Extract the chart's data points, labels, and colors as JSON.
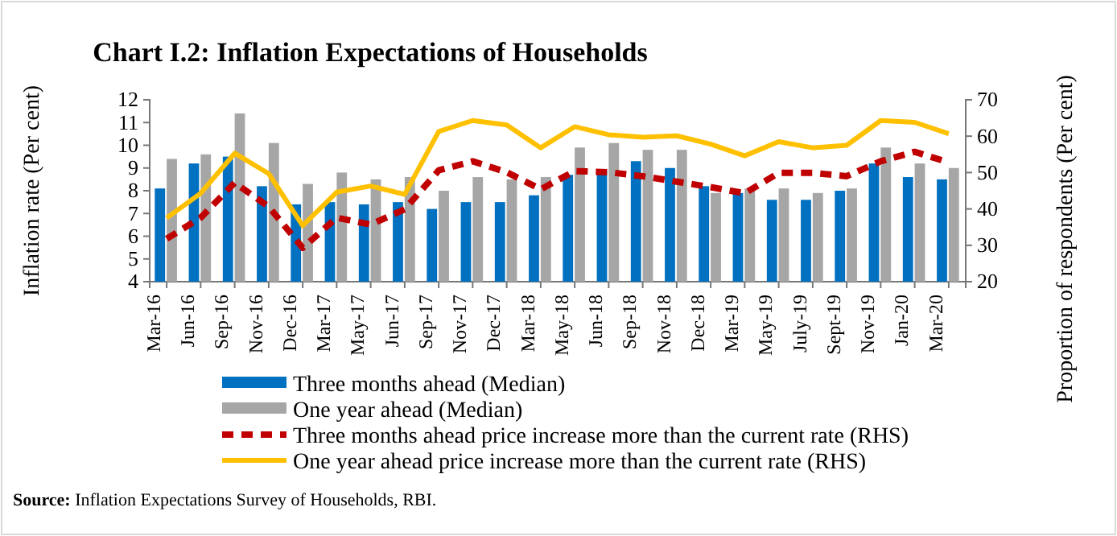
{
  "chart_data": {
    "type": "bar",
    "title": "Chart I.2: Inflation Expectations of Households",
    "ylabel": "Inflation rate (Per cent)",
    "y2label": "Proportion of respondents (Per cent)",
    "categories": [
      "Mar-16",
      "Jun-16",
      "Sep-16",
      "Nov-16",
      "Dec-16",
      "Mar-17",
      "May-17",
      "Jun-17",
      "Sep-17",
      "Nov-17",
      "Dec-17",
      "Mar-18",
      "May-18",
      "Jun-18",
      "Sep-18",
      "Nov-18",
      "Dec-18",
      "Mar-19",
      "May-19",
      "July-19",
      "Sept-19",
      "Nov-19",
      "Jan-20",
      "Mar-20"
    ],
    "series": [
      {
        "name": "Three months ahead (Median)",
        "color": "#0070c0",
        "values": [
          8.1,
          9.2,
          9.5,
          8.2,
          7.4,
          7.5,
          7.4,
          7.5,
          7.2,
          7.5,
          7.5,
          7.8,
          8.7,
          8.9,
          9.3,
          9.0,
          8.2,
          7.9,
          7.6,
          7.6,
          8.0,
          9.2,
          8.6,
          8.5
        ]
      },
      {
        "name": "One year ahead (Median)",
        "color": "#a6a6a6",
        "values": [
          9.4,
          9.6,
          11.4,
          10.1,
          8.3,
          8.8,
          8.5,
          8.6,
          8.0,
          8.6,
          8.5,
          8.6,
          9.9,
          10.1,
          9.8,
          9.8,
          7.9,
          8.1,
          8.1,
          7.9,
          8.1,
          9.9,
          9.2,
          9.0
        ]
      },
      {
        "name": "Three months ahead price increase more than the current rate (RHS)",
        "type": "line",
        "axis": "y2",
        "line_style": "dashed",
        "color": "#c00000",
        "values": [
          31.8,
          37.6,
          47.2,
          40.6,
          29.3,
          37.6,
          35.7,
          39.9,
          50.6,
          53.1,
          50.1,
          45.4,
          50.4,
          50.1,
          49.0,
          47.5,
          46.0,
          44.3,
          49.9,
          49.9,
          49.0,
          53.1,
          55.7,
          52.8
        ]
      },
      {
        "name": "One year ahead price increase more than the current rate (RHS)",
        "type": "line",
        "axis": "y2",
        "line_style": "solid",
        "color": "#ffc000",
        "values": [
          37.5,
          44.3,
          55.3,
          49.7,
          35.4,
          44.6,
          46.3,
          44.0,
          61.3,
          64.3,
          63.1,
          56.8,
          62.6,
          60.4,
          59.7,
          60.1,
          57.8,
          54.6,
          58.5,
          56.8,
          57.5,
          64.3,
          63.8,
          60.7
        ]
      }
    ],
    "ylim": [
      4,
      12
    ],
    "yticks": [
      4,
      5,
      6,
      7,
      8,
      9,
      10,
      11,
      12
    ],
    "y2lim": [
      20,
      70
    ],
    "y2ticks": [
      20,
      30,
      40,
      50,
      60,
      70
    ],
    "legend": "bottom",
    "grid": false,
    "annotations": [
      "Source: Inflation Expectations Survey of Households, RBI."
    ]
  }
}
